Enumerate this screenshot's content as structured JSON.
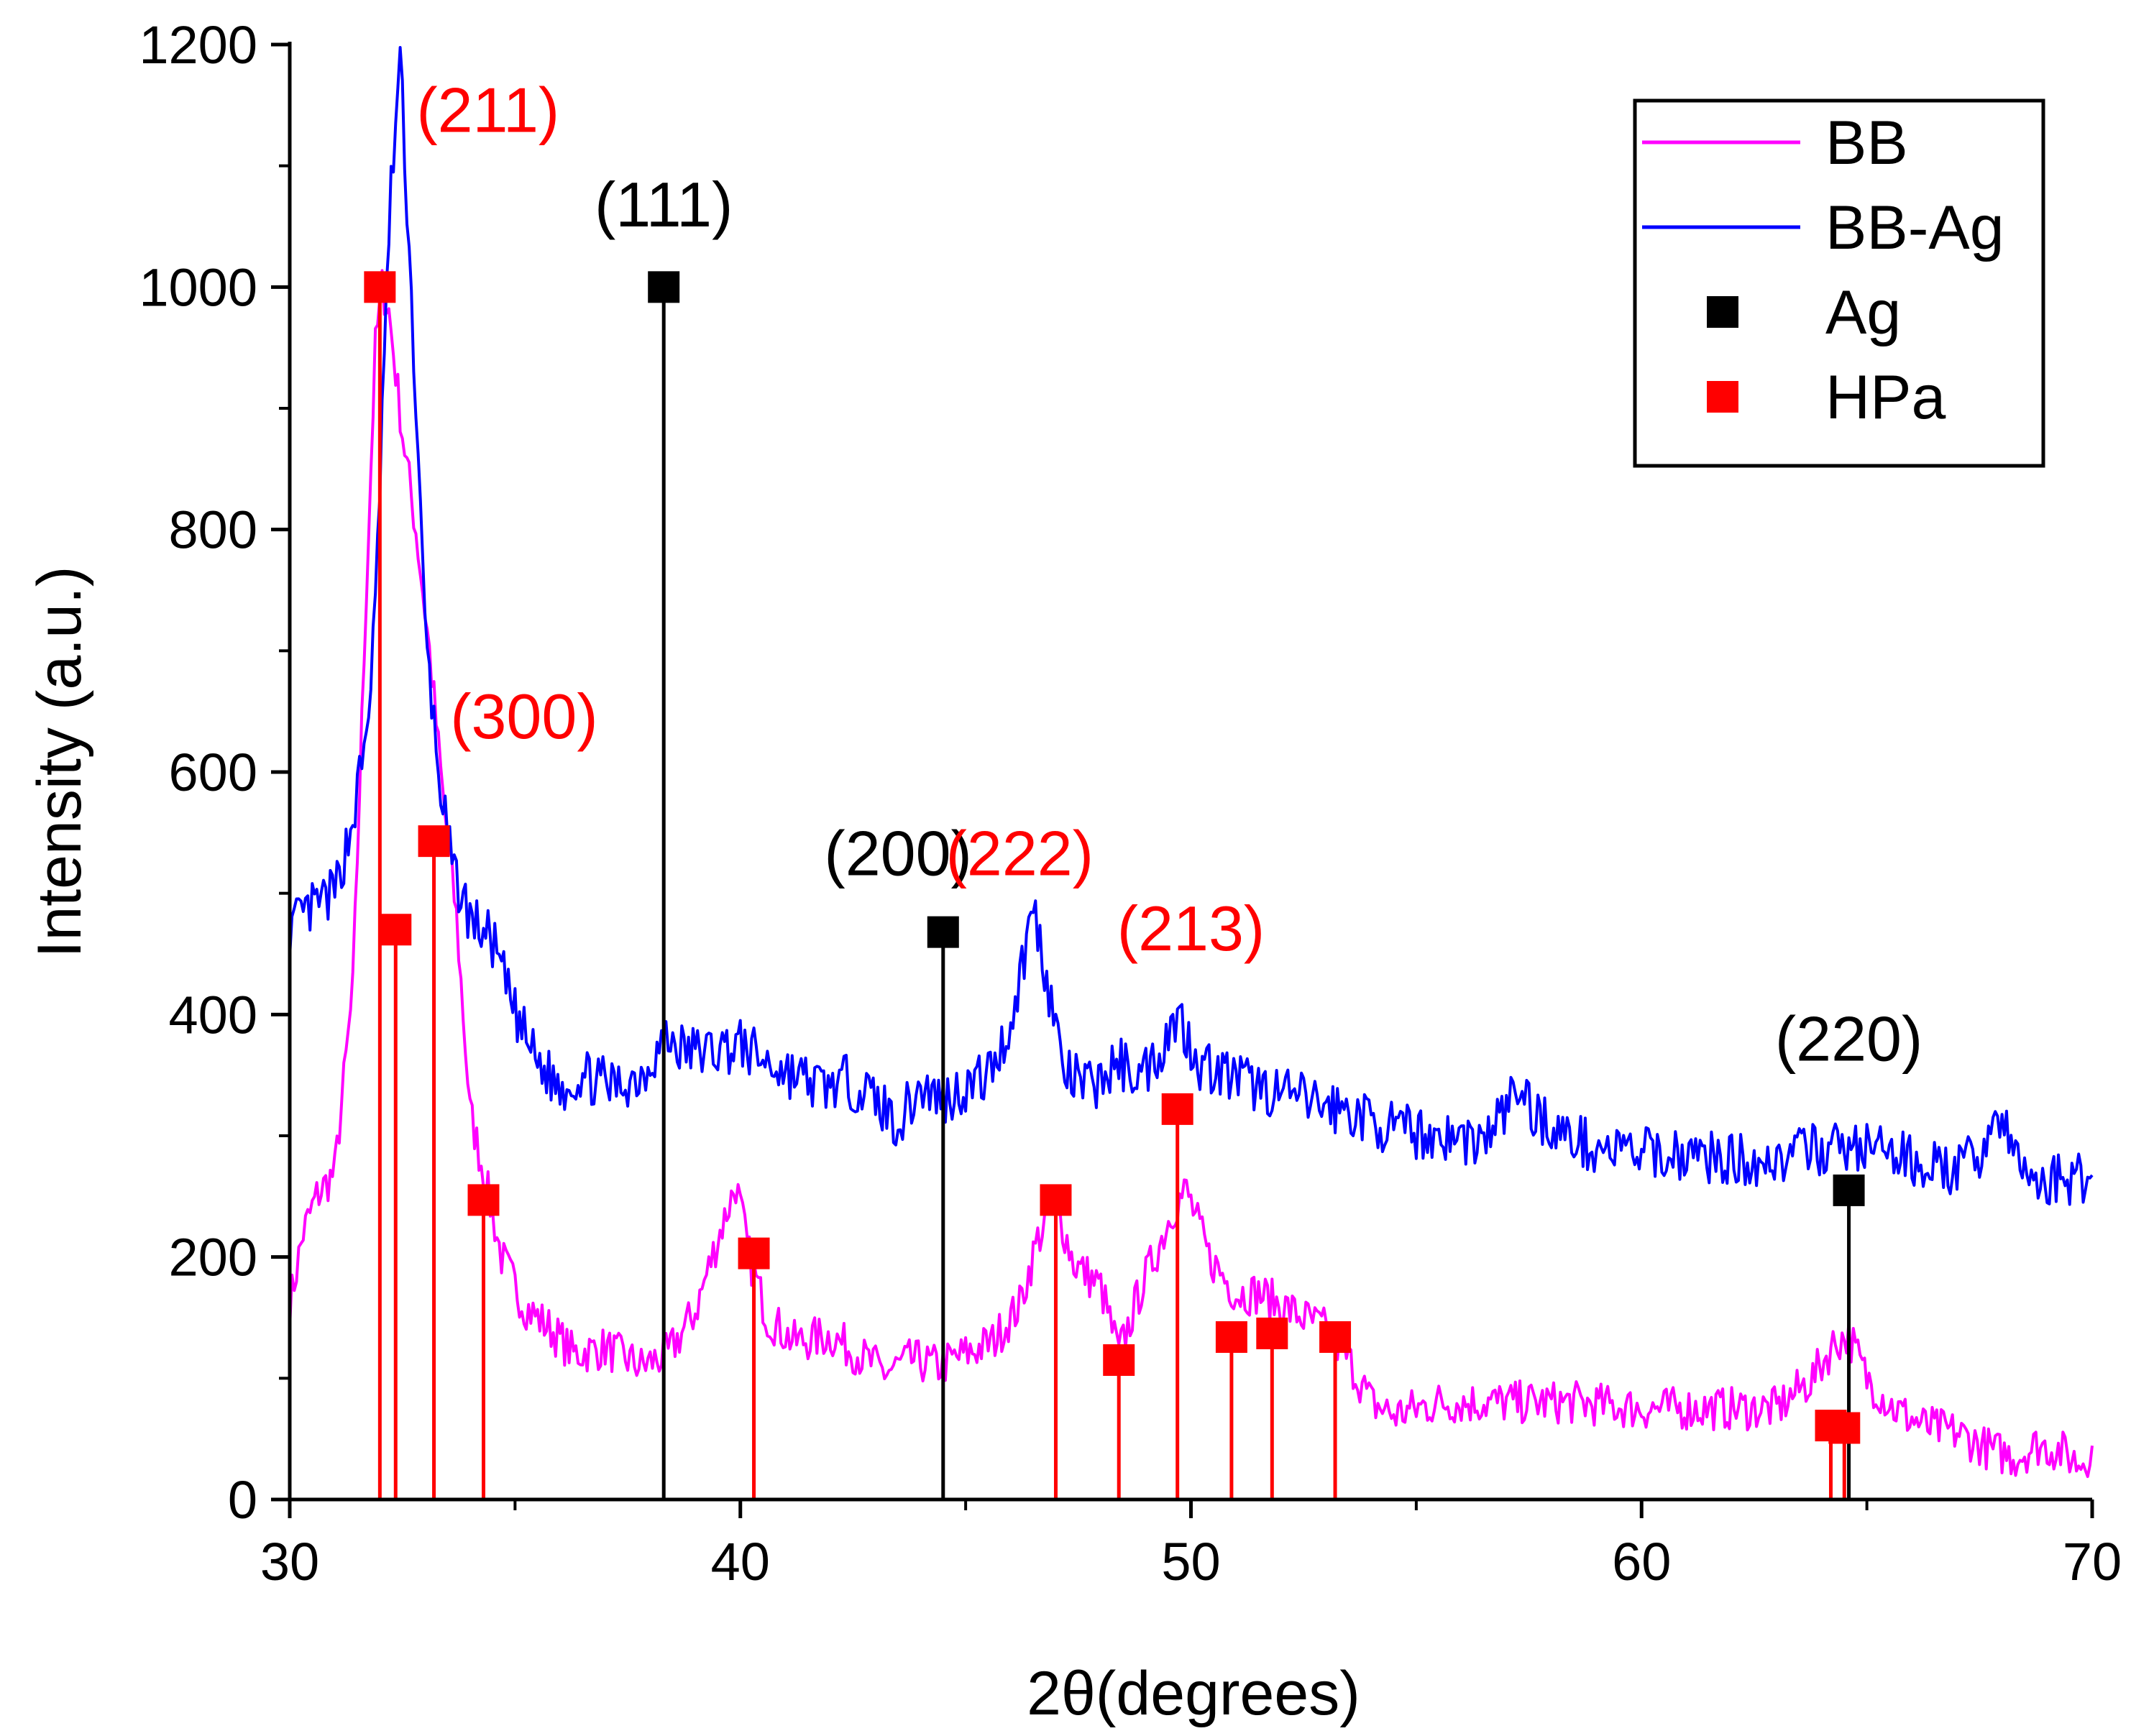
{
  "colors": {
    "bb": "#ff00ff",
    "bb_ag": "#0000ff",
    "ag": "#000000",
    "hpa": "#ff0000",
    "axis": "#000000"
  },
  "chart_data": {
    "type": "line",
    "title": "",
    "xlabel": "2θ(degrees)",
    "ylabel": "Intensity (a.u.)",
    "xlim": [
      30,
      70
    ],
    "ylim": [
      0,
      1200
    ],
    "x_ticks": [
      30,
      40,
      50,
      60,
      70
    ],
    "y_ticks": [
      0,
      200,
      400,
      600,
      800,
      1000,
      1200
    ],
    "x_tick_labels": [
      "30",
      "40",
      "50",
      "60",
      "70"
    ],
    "y_tick_labels": [
      "0",
      "200",
      "400",
      "600",
      "800",
      "1000",
      "1200"
    ],
    "grid": false,
    "legend_position": "top-right",
    "series": [
      {
        "name": "BB",
        "kind": "line",
        "color": "#ff00ff",
        "noise": 18,
        "seed": 7,
        "x": [
          30.0,
          30.3,
          30.6,
          31.0,
          31.4,
          31.7,
          31.9,
          32.05,
          32.2,
          32.5,
          32.8,
          33.1,
          33.4,
          33.7,
          34.0,
          34.3,
          34.7,
          35.2,
          35.8,
          36.3,
          37.0,
          37.8,
          38.4,
          39.0,
          39.5,
          39.9,
          40.2,
          40.6,
          41.2,
          42.0,
          42.6,
          43.2,
          43.8,
          44.4,
          45.0,
          45.6,
          46.2,
          46.6,
          47.0,
          47.4,
          48.0,
          48.4,
          48.9,
          49.3,
          49.6,
          49.9,
          50.4,
          51.0,
          51.5,
          52.0,
          52.5,
          53.0,
          53.5,
          54.0,
          54.5,
          55.5,
          57.0,
          58.5,
          60.0,
          61.5,
          63.0,
          63.8,
          64.3,
          64.6,
          65.0,
          65.6,
          66.3,
          67.0,
          67.8,
          68.3,
          68.8,
          69.3,
          69.7,
          70.0
        ],
        "y": [
          160,
          220,
          250,
          270,
          420,
          750,
          950,
          1000,
          980,
          880,
          800,
          700,
          580,
          480,
          320,
          270,
          200,
          160,
          140,
          120,
          125,
          110,
          120,
          155,
          215,
          260,
          200,
          150,
          130,
          135,
          120,
          105,
          115,
          110,
          120,
          130,
          160,
          215,
          245,
          195,
          175,
          120,
          175,
          210,
          240,
          255,
          200,
          170,
          170,
          160,
          150,
          140,
          115,
          80,
          70,
          80,
          80,
          80,
          75,
          75,
          75,
          100,
          130,
          135,
          100,
          75,
          60,
          55,
          40,
          35,
          45,
          40,
          30,
          40
        ]
      },
      {
        "name": "BB-Ag",
        "kind": "line",
        "color": "#0000ff",
        "noise": 22,
        "seed": 13,
        "x": [
          30.0,
          30.3,
          30.6,
          31.0,
          31.4,
          31.7,
          31.9,
          32.1,
          32.25,
          32.45,
          32.7,
          33.0,
          33.3,
          33.6,
          34.0,
          34.5,
          35.0,
          35.5,
          36.0,
          36.5,
          37.2,
          37.8,
          38.3,
          38.8,
          39.4,
          40.0,
          40.6,
          41.2,
          41.8,
          42.4,
          43.0,
          43.5,
          44.0,
          44.5,
          45.0,
          45.5,
          46.0,
          46.3,
          46.5,
          46.8,
          47.2,
          47.8,
          48.4,
          48.9,
          49.3,
          49.7,
          50.2,
          50.8,
          51.5,
          52.5,
          53.5,
          54.5,
          55.5,
          56.5,
          57.3,
          57.6,
          58.3,
          59.0,
          60.0,
          61.0,
          62.0,
          63.0,
          64.0,
          65.0,
          66.0,
          67.0,
          67.5,
          67.9,
          68.3,
          68.8,
          69.3,
          69.7,
          70.0
        ],
        "y": [
          470,
          480,
          490,
          500,
          560,
          630,
          730,
          950,
          1080,
          1190,
          990,
          720,
          600,
          520,
          480,
          460,
          400,
          360,
          340,
          350,
          340,
          350,
          380,
          370,
          370,
          375,
          360,
          350,
          340,
          345,
          330,
          310,
          340,
          330,
          340,
          350,
          390,
          450,
          490,
          430,
          350,
          340,
          360,
          350,
          370,
          400,
          360,
          350,
          340,
          330,
          320,
          305,
          300,
          295,
          340,
          320,
          300,
          290,
          285,
          285,
          280,
          280,
          290,
          290,
          280,
          270,
          285,
          320,
          280,
          260,
          265,
          265,
          270
        ]
      },
      {
        "name": "Ag",
        "kind": "stem",
        "color": "#000000",
        "marker": "square",
        "x": [
          38.3,
          44.5,
          64.6
        ],
        "y": [
          1000,
          468,
          255
        ]
      },
      {
        "name": "HPa",
        "kind": "stem",
        "color": "#ff0000",
        "marker": "square",
        "x": [
          32.0,
          32.35,
          33.2,
          34.3,
          40.3,
          47.0,
          48.4,
          49.7,
          50.9,
          51.8,
          53.2,
          64.2,
          64.5
        ],
        "y": [
          1000,
          470,
          543,
          247,
          203,
          247,
          115,
          322,
          134,
          137,
          134,
          61,
          59
        ]
      }
    ],
    "annotations": [
      {
        "text": "(211)",
        "x": 34.4,
        "y": 1128,
        "color": "#ff0000"
      },
      {
        "text": "(111)",
        "x": 38.3,
        "y": 1050,
        "color": "#000000"
      },
      {
        "text": "(300)",
        "x": 35.2,
        "y": 628,
        "color": "#ff0000"
      },
      {
        "text": "(200)",
        "x": 43.5,
        "y": 515,
        "color": "#000000"
      },
      {
        "text": "(222)",
        "x": 46.2,
        "y": 515,
        "color": "#ff0000"
      },
      {
        "text": "(213)",
        "x": 50.0,
        "y": 453,
        "color": "#ff0000"
      },
      {
        "text": "(220)",
        "x": 64.6,
        "y": 362,
        "color": "#000000"
      }
    ],
    "legend": [
      {
        "label": "BB",
        "symbol": "line",
        "color": "#ff00ff"
      },
      {
        "label": "BB-Ag",
        "symbol": "line",
        "color": "#0000ff"
      },
      {
        "label": "Ag",
        "symbol": "square",
        "color": "#000000"
      },
      {
        "label": "HPa",
        "symbol": "square",
        "color": "#ff0000"
      }
    ]
  }
}
